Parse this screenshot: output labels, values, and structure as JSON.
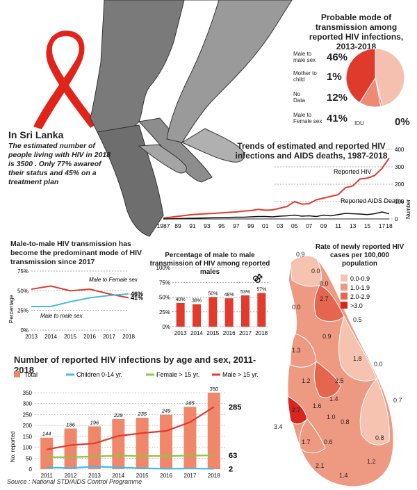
{
  "intro": {
    "heading": "In Sri Lanka",
    "text": "The estimated number of people living with HIV in 2018 is 3500 . Only 77% awareof their status and 45% on a treatment plan"
  },
  "colors": {
    "red": "#e23a2c",
    "salmon": "#f0876b",
    "light_salmon": "#f6b9a4",
    "cyan": "#45b9e8",
    "green": "#8cc63f",
    "pie_light": "#f6c0b0",
    "pie_mid": "#ee8a74",
    "pie_dark": "#e03a2c"
  },
  "source": "Source : National STD/AIDS Control Programme",
  "chart_data": [
    {
      "id": "pie",
      "type": "pie",
      "title": "Probable mode of transmission among reported HIV infections, 2013-2018",
      "slices": [
        {
          "label": "Male to male sex",
          "value": 46,
          "value_label": "46%"
        },
        {
          "label": "Mother to child",
          "value": 1,
          "value_label": "1%"
        },
        {
          "label": "No Data",
          "value": 12,
          "value_label": "12%"
        },
        {
          "label": "Male to Female sex",
          "value": 41,
          "value_label": "41%"
        },
        {
          "label": "IDU",
          "value": 0,
          "value_label": "0%"
        }
      ]
    },
    {
      "id": "trends",
      "type": "line",
      "title": "Trends of estimated and reported HIV infections and AIDS deaths, 1987-2018",
      "ylabel": "Number",
      "ylim": [
        0,
        400
      ],
      "yticks": [
        0,
        100,
        200,
        300,
        400
      ],
      "x_tick_labels": [
        "1987",
        "89",
        "91",
        "93",
        "95",
        "97",
        "99",
        "01",
        "03",
        "05",
        "07",
        "09",
        "11",
        "13",
        "15",
        "17",
        "18"
      ],
      "x": [
        1987,
        1988,
        1989,
        1990,
        1991,
        1992,
        1993,
        1994,
        1995,
        1996,
        1997,
        1998,
        1999,
        2000,
        2001,
        2002,
        2003,
        2004,
        2005,
        2006,
        2007,
        2008,
        2009,
        2010,
        2011,
        2012,
        2013,
        2014,
        2015,
        2016,
        2017,
        2018
      ],
      "series": [
        {
          "name": "Reported HIV",
          "values": [
            5,
            10,
            15,
            20,
            25,
            28,
            30,
            32,
            35,
            38,
            40,
            45,
            48,
            55,
            50,
            52,
            62,
            72,
            100,
            85,
            88,
            110,
            120,
            130,
            140,
            180,
            190,
            230,
            235,
            250,
            290,
            350
          ]
        },
        {
          "name": "Reported AIDS Deaths",
          "values": [
            0,
            1,
            2,
            3,
            4,
            5,
            6,
            7,
            8,
            9,
            10,
            10,
            12,
            14,
            14,
            12,
            16,
            18,
            22,
            16,
            18,
            14,
            22,
            18,
            25,
            32,
            30,
            28,
            25,
            30,
            40,
            30
          ]
        }
      ]
    },
    {
      "id": "mtm",
      "type": "line",
      "title": "Male-to-male HIV transmission has become the predominant mode of HIV transmission since 2017",
      "ylabel": "Percentage",
      "ylim": [
        0,
        75
      ],
      "yticks_labels": [
        "0%",
        "25%",
        "50%",
        "75%"
      ],
      "yticks": [
        0,
        25,
        50,
        75
      ],
      "categories": [
        "2013",
        "2014",
        "2015",
        "2016",
        "2017",
        "2018"
      ],
      "series": [
        {
          "name": "Male to Female sex",
          "values": [
            52,
            56,
            50,
            52,
            46,
            41
          ],
          "end_label": "41%"
        },
        {
          "name": "Male to male sex",
          "values": [
            30,
            30,
            36,
            41,
            44,
            46
          ],
          "end_label": "46%"
        }
      ]
    },
    {
      "id": "pct_male",
      "type": "bar",
      "title": "Percentage of male to male transmission of HIV among reported males",
      "ylim": [
        0,
        100
      ],
      "yticks": [
        0,
        25,
        50,
        75,
        100
      ],
      "ytick_labels": [
        "0%",
        "25%",
        "50%",
        "75%",
        "100%"
      ],
      "categories": [
        "2013",
        "2014",
        "2015",
        "2016",
        "2017",
        "2018"
      ],
      "values": [
        40,
        38,
        50,
        48,
        53,
        57
      ],
      "value_labels": [
        "40%",
        "38%",
        "50%",
        "48%",
        "53%",
        "57%"
      ],
      "symbol": "⚣"
    },
    {
      "id": "age_sex",
      "type": "bar",
      "title": "Number of reported HIV infections by age and sex, 2011-2018",
      "ylabel": "No. reported",
      "ylim": [
        0,
        350
      ],
      "yticks": [
        0,
        50,
        100,
        150,
        200,
        250,
        300,
        350
      ],
      "categories": [
        "2011",
        "2012",
        "2013",
        "2014",
        "2015",
        "2016",
        "2017",
        "2018"
      ],
      "series": [
        {
          "name": "Total",
          "values": [
            144,
            186,
            196,
            229,
            235,
            249,
            285,
            350
          ]
        },
        {
          "name": "Children 0-14 yr.",
          "values": [
            8,
            5,
            12,
            8,
            4,
            2,
            3,
            2
          ]
        },
        {
          "name": "Female > 15 yr.",
          "values": [
            55,
            55,
            58,
            62,
            60,
            60,
            62,
            63
          ]
        },
        {
          "name": "Male > 15 yr.",
          "values": [
            90,
            110,
            118,
            152,
            165,
            175,
            215,
            285
          ]
        }
      ],
      "end_labels": [
        "285",
        "63",
        "2"
      ]
    },
    {
      "id": "map",
      "type": "choropleth",
      "title": "Rate of newly reported HIV cases per 100,000 population",
      "legend": [
        {
          "label": "0.0-0.9",
          "color": "#f6c3b1"
        },
        {
          "label": "1.0-1.9",
          "color": "#ee9a82"
        },
        {
          "label": "2.0-2.9",
          "color": "#e5654f"
        },
        {
          "label": ">3.0",
          "color": "#d7251f"
        }
      ],
      "district_values": [
        "0.9",
        "0.0",
        "0.0",
        "2.7",
        "0.0",
        "0.5",
        "0.9",
        "1.3",
        "1.8",
        "0.0",
        "1.2",
        "2.5",
        "1.4",
        "2.7",
        "1.6",
        "1.0",
        "0.7",
        "0.8",
        "3.4",
        "1.7",
        "0.6",
        "0.8",
        "1.2",
        "2.1",
        "1.4"
      ]
    }
  ]
}
